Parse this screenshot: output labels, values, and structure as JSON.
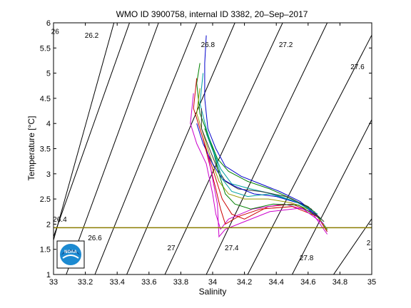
{
  "chart_data": {
    "type": "line",
    "title": "WMO ID 3900758, internal ID 3382, 20–Sep–2017",
    "xlabel": "Salinity",
    "ylabel": "Temperature [°C]",
    "xlim": [
      33,
      35
    ],
    "ylim": [
      1,
      6
    ],
    "xticks": [
      33,
      33.2,
      33.4,
      33.6,
      33.8,
      34,
      34.2,
      34.4,
      34.6,
      34.8,
      35
    ],
    "yticks": [
      1,
      1.5,
      2,
      2.5,
      3,
      3.5,
      4,
      4.5,
      5,
      5.5,
      6
    ],
    "xtick_labels": [
      "33",
      "33.2",
      "33.4",
      "33.6",
      "33.8",
      "34",
      "34.2",
      "34.4",
      "34.6",
      "34.8",
      "35"
    ],
    "ytick_labels": [
      "1",
      "1.5",
      "2",
      "2.5",
      "3",
      "3.5",
      "4",
      "4.5",
      "5",
      "5.5",
      "6"
    ],
    "grid": false,
    "reference_line": {
      "temperature": 1.93,
      "color": "#8b7d00"
    },
    "isopycnals": [
      {
        "label": "26.2",
        "points": [
          [
            32.94,
            1.0
          ],
          [
            33.38,
            6.0
          ]
        ]
      },
      {
        "label": "26.4",
        "points": [
          [
            33.0,
            1.75
          ],
          [
            33.5,
            6.2
          ]
        ]
      },
      {
        "label": "26.6",
        "points": [
          [
            33.08,
            1.0
          ],
          [
            33.66,
            6.0
          ]
        ]
      },
      {
        "label": "27",
        "points": [
          [
            33.46,
            1.0
          ],
          [
            34.14,
            6.0
          ]
        ]
      },
      {
        "label": "26.8",
        "points": [
          [
            33.26,
            1.0
          ],
          [
            33.9,
            6.0
          ]
        ]
      },
      {
        "label": "27.2",
        "points": [
          [
            33.7,
            1.0
          ],
          [
            34.44,
            6.0
          ]
        ]
      },
      {
        "label": "27.4",
        "points": [
          [
            33.96,
            1.0
          ],
          [
            34.72,
            6.0
          ]
        ]
      },
      {
        "label": "27.6",
        "points": [
          [
            34.22,
            1.0
          ],
          [
            35.04,
            6.0
          ]
        ]
      },
      {
        "label": "27.8",
        "points": [
          [
            34.5,
            1.0
          ],
          [
            35.02,
            4.2
          ]
        ]
      },
      {
        "label": "28",
        "points": [
          [
            34.76,
            1.0
          ],
          [
            35.02,
            2.2
          ]
        ]
      }
    ],
    "isopycnal_label_positions": [
      {
        "text": "26",
        "s": 33.01,
        "t": 5.78
      },
      {
        "text": "26.2",
        "s": 33.24,
        "t": 5.7
      },
      {
        "text": "26.4",
        "s": 33.04,
        "t": 2.05
      },
      {
        "text": "26.6",
        "s": 33.26,
        "t": 1.68
      },
      {
        "text": "26.8",
        "s": 33.97,
        "t": 5.52
      },
      {
        "text": "27",
        "s": 33.74,
        "t": 1.48
      },
      {
        "text": "27.2",
        "s": 34.46,
        "t": 5.52
      },
      {
        "text": "27.4",
        "s": 34.12,
        "t": 1.48
      },
      {
        "text": "27.6",
        "s": 34.91,
        "t": 5.08
      },
      {
        "text": "27.8",
        "s": 34.59,
        "t": 1.28
      },
      {
        "text": "2",
        "s": 34.98,
        "t": 1.58
      }
    ],
    "profiles": [
      {
        "color": "#0000cc",
        "points": [
          [
            33.96,
            5.75
          ],
          [
            33.95,
            5.2
          ],
          [
            33.95,
            4.5
          ],
          [
            33.97,
            3.9
          ],
          [
            34.02,
            3.5
          ],
          [
            34.08,
            3.15
          ],
          [
            34.18,
            2.95
          ],
          [
            34.3,
            2.8
          ],
          [
            34.42,
            2.65
          ],
          [
            34.55,
            2.45
          ],
          [
            34.65,
            2.2
          ],
          [
            34.72,
            1.85
          ]
        ]
      },
      {
        "color": "#008000",
        "points": [
          [
            33.92,
            5.2
          ],
          [
            33.9,
            4.8
          ],
          [
            33.92,
            4.2
          ],
          [
            33.98,
            3.7
          ],
          [
            34.03,
            3.3
          ],
          [
            34.1,
            3.05
          ],
          [
            34.22,
            2.85
          ],
          [
            34.36,
            2.7
          ],
          [
            34.5,
            2.5
          ],
          [
            34.62,
            2.3
          ],
          [
            34.72,
            1.9
          ]
        ]
      },
      {
        "color": "#cc0000",
        "points": [
          [
            33.9,
            4.9
          ],
          [
            33.88,
            4.3
          ],
          [
            33.93,
            3.8
          ],
          [
            33.98,
            3.3
          ],
          [
            34.02,
            2.9
          ],
          [
            34.06,
            2.5
          ],
          [
            34.12,
            2.2
          ],
          [
            34.2,
            2.1
          ],
          [
            34.35,
            2.35
          ],
          [
            34.5,
            2.4
          ],
          [
            34.65,
            2.2
          ],
          [
            34.72,
            1.85
          ]
        ]
      },
      {
        "color": "#00a0a0",
        "points": [
          [
            33.94,
            5.0
          ],
          [
            33.92,
            4.4
          ],
          [
            33.96,
            3.9
          ],
          [
            34.0,
            3.5
          ],
          [
            34.05,
            3.1
          ],
          [
            34.12,
            2.8
          ],
          [
            34.24,
            2.7
          ],
          [
            34.38,
            2.6
          ],
          [
            34.52,
            2.45
          ],
          [
            34.64,
            2.25
          ],
          [
            34.72,
            1.9
          ]
        ]
      },
      {
        "color": "#cc00cc",
        "points": [
          [
            33.88,
            4.6
          ],
          [
            33.86,
            4.0
          ],
          [
            33.9,
            3.6
          ],
          [
            33.96,
            3.2
          ],
          [
            34.0,
            2.6
          ],
          [
            34.02,
            2.2
          ],
          [
            34.05,
            1.9
          ],
          [
            34.1,
            2.1
          ],
          [
            34.25,
            2.3
          ],
          [
            34.45,
            2.4
          ],
          [
            34.62,
            2.25
          ],
          [
            34.72,
            1.8
          ]
        ]
      },
      {
        "color": "#999900",
        "points": [
          [
            33.92,
            4.7
          ],
          [
            33.9,
            4.2
          ],
          [
            33.95,
            3.7
          ],
          [
            34.0,
            3.2
          ],
          [
            34.04,
            2.85
          ],
          [
            34.1,
            2.6
          ],
          [
            34.2,
            2.5
          ],
          [
            34.35,
            2.5
          ],
          [
            34.5,
            2.42
          ],
          [
            34.64,
            2.25
          ],
          [
            34.72,
            1.88
          ]
        ]
      },
      {
        "color": "#333333",
        "points": [
          [
            33.93,
            4.3
          ],
          [
            33.93,
            3.9
          ],
          [
            33.98,
            3.5
          ],
          [
            34.03,
            3.1
          ],
          [
            34.08,
            2.85
          ],
          [
            34.16,
            2.7
          ],
          [
            34.3,
            2.65
          ],
          [
            34.46,
            2.55
          ],
          [
            34.6,
            2.35
          ],
          [
            34.7,
            2.05
          ]
        ]
      },
      {
        "color": "#0000cc",
        "points": [
          [
            33.9,
            4.0
          ],
          [
            33.94,
            3.6
          ],
          [
            34.0,
            3.2
          ],
          [
            34.06,
            2.9
          ],
          [
            34.14,
            2.75
          ],
          [
            34.26,
            2.6
          ],
          [
            34.4,
            2.55
          ],
          [
            34.56,
            2.4
          ],
          [
            34.68,
            2.1
          ]
        ]
      },
      {
        "color": "#008000",
        "points": [
          [
            33.95,
            3.9
          ],
          [
            34.0,
            3.5
          ],
          [
            34.04,
            3.0
          ],
          [
            34.08,
            2.6
          ],
          [
            34.14,
            2.4
          ],
          [
            34.24,
            2.3
          ],
          [
            34.38,
            2.4
          ],
          [
            34.54,
            2.38
          ],
          [
            34.68,
            2.1
          ]
        ]
      },
      {
        "color": "#cc0000",
        "points": [
          [
            33.94,
            3.7
          ],
          [
            33.98,
            3.2
          ],
          [
            34.02,
            2.7
          ],
          [
            34.05,
            2.3
          ],
          [
            34.08,
            2.0
          ],
          [
            34.16,
            2.15
          ],
          [
            34.3,
            2.3
          ],
          [
            34.5,
            2.35
          ],
          [
            34.66,
            2.15
          ]
        ]
      },
      {
        "color": "#cc00cc",
        "points": [
          [
            33.97,
            3.4
          ],
          [
            34.0,
            2.9
          ],
          [
            34.03,
            2.4
          ],
          [
            34.04,
            1.75
          ],
          [
            34.08,
            1.9
          ],
          [
            34.2,
            2.05
          ],
          [
            34.36,
            2.25
          ],
          [
            34.56,
            2.32
          ],
          [
            34.7,
            2.0
          ]
        ]
      },
      {
        "color": "#00a0a0",
        "points": [
          [
            33.96,
            3.8
          ],
          [
            34.02,
            3.3
          ],
          [
            34.06,
            2.9
          ],
          [
            34.12,
            2.65
          ],
          [
            34.22,
            2.55
          ],
          [
            34.36,
            2.6
          ],
          [
            34.52,
            2.45
          ],
          [
            34.66,
            2.2
          ]
        ]
      }
    ]
  },
  "logo": {
    "text": "NOAA"
  }
}
